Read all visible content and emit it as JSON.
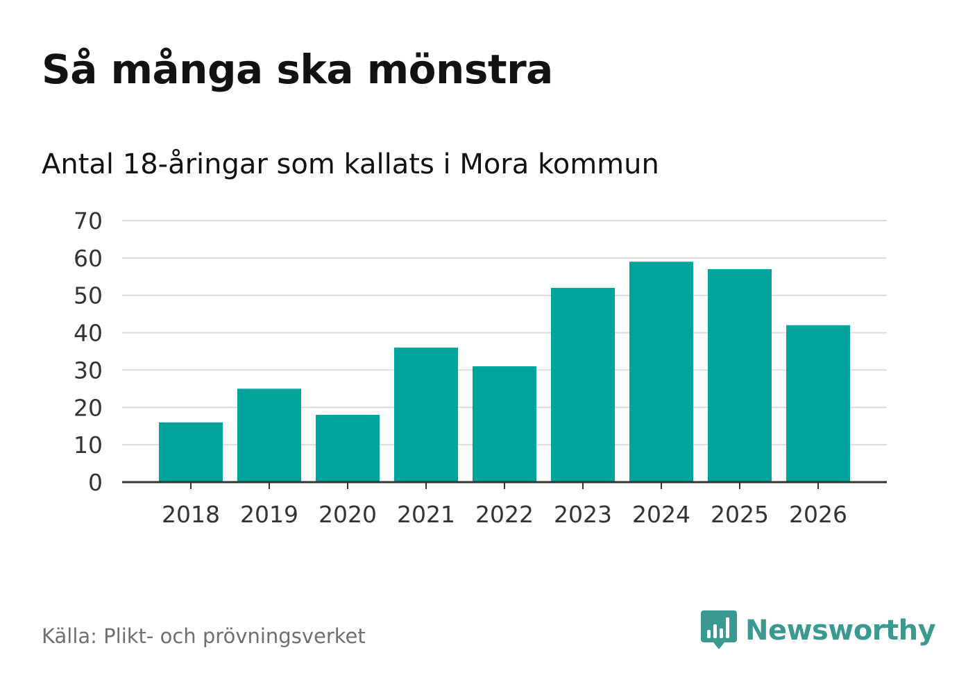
{
  "header": {
    "title": "Så många ska mönstra",
    "subtitle": "Antal 18-åringar som kallats i Mora kommun"
  },
  "footer": {
    "source": "Källa: Plikt- och prövningsverket",
    "brand_name": "Newsworthy",
    "brand_icon": "newsworthy-logo-icon"
  },
  "colors": {
    "bar": "#00a49a",
    "grid": "#dcdcdc",
    "axis": "#333333",
    "brand": "#3a9a91"
  },
  "chart_data": {
    "type": "bar",
    "title": "Så många ska mönstra",
    "subtitle": "Antal 18-åringar som kallats i Mora kommun",
    "xlabel": "",
    "ylabel": "",
    "categories": [
      "2018",
      "2019",
      "2020",
      "2021",
      "2022",
      "2023",
      "2024",
      "2025",
      "2026"
    ],
    "values": [
      16,
      25,
      18,
      36,
      31,
      52,
      59,
      57,
      42
    ],
    "ylim": [
      0,
      70
    ],
    "yticks": [
      0,
      10,
      20,
      30,
      40,
      50,
      60,
      70
    ],
    "grid": true,
    "legend": "none"
  }
}
